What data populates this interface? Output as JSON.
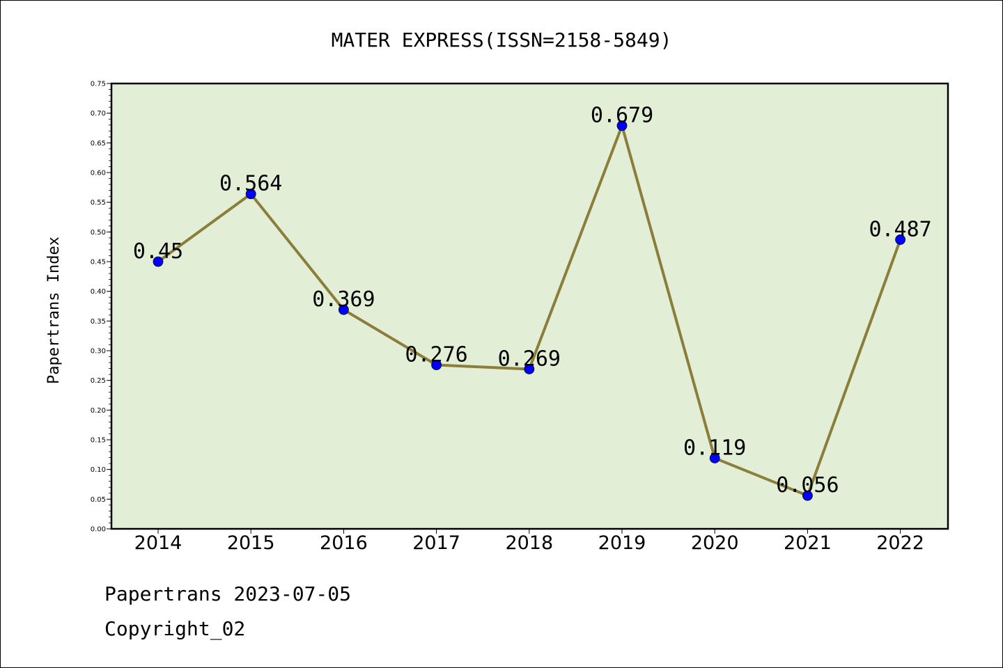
{
  "chart_data": {
    "type": "line",
    "title": "MATER EXPRESS(ISSN=2158-5849)",
    "xlabel": "",
    "ylabel": "Papertrans Index",
    "categories": [
      "2014",
      "2015",
      "2016",
      "2017",
      "2018",
      "2019",
      "2020",
      "2021",
      "2022"
    ],
    "values": [
      0.45,
      0.564,
      0.369,
      0.276,
      0.269,
      0.679,
      0.119,
      0.056,
      0.487
    ],
    "data_labels": [
      "0.45",
      "0.564",
      "0.369",
      "0.276",
      "0.269",
      "0.679",
      "0.119",
      "0.056",
      "0.487"
    ],
    "ylim": [
      0,
      0.75
    ],
    "yticks": [
      "0.00",
      "0.05",
      "0.10",
      "0.15",
      "0.20",
      "0.25",
      "0.30",
      "0.35",
      "0.40",
      "0.45",
      "0.50",
      "0.55",
      "0.60",
      "0.65",
      "0.70",
      "0.75"
    ],
    "grid": false,
    "legend": "none",
    "colors": {
      "line": "#8b7d3a",
      "marker": "#0000ff",
      "plot_background": "#e2efd6"
    }
  },
  "footer": {
    "date_line": "Papertrans 2023-07-05",
    "copyright": "Copyright_02"
  }
}
